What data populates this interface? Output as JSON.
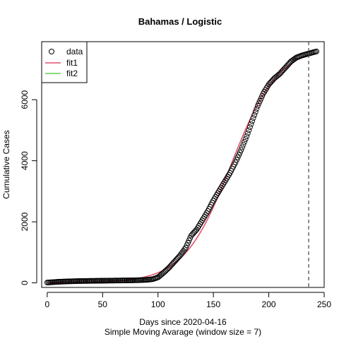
{
  "chart_data": {
    "type": "scatter",
    "title": "Bahamas / Logistic",
    "xlabel": "Days since 2020-04-16",
    "xlabel_sub": "Simple Moving Avarage (window size = 7)",
    "ylabel": "Cumulative Cases",
    "xlim": [
      -5,
      250
    ],
    "ylim": [
      -150,
      7900
    ],
    "x_ticks": [
      0,
      50,
      100,
      150,
      200,
      250
    ],
    "y_ticks": [
      0,
      2000,
      4000,
      6000
    ],
    "x_tick_labels": [
      "0",
      "50",
      "100",
      "150",
      "200",
      "250"
    ],
    "y_tick_labels": [
      "0",
      "2000",
      "4000",
      "6000"
    ],
    "vline_x": 236,
    "legend_position": "top-left",
    "legend": [
      {
        "label": "data",
        "symbol": "open-circle",
        "color": "#000000"
      },
      {
        "label": "fit1",
        "symbol": "line",
        "color": "#DF536B"
      },
      {
        "label": "fit2",
        "symbol": "line",
        "color": "#61D04F"
      }
    ],
    "series": [
      {
        "name": "data",
        "kind": "points",
        "color": "#000000",
        "points": [
          [
            0,
            10
          ],
          [
            10,
            35
          ],
          [
            20,
            50
          ],
          [
            30,
            60
          ],
          [
            40,
            65
          ],
          [
            50,
            70
          ],
          [
            60,
            75
          ],
          [
            70,
            80
          ],
          [
            80,
            85
          ],
          [
            90,
            100
          ],
          [
            95,
            120
          ],
          [
            100,
            180
          ],
          [
            105,
            330
          ],
          [
            110,
            500
          ],
          [
            115,
            700
          ],
          [
            120,
            900
          ],
          [
            125,
            1150
          ],
          [
            130,
            1550
          ],
          [
            135,
            1750
          ],
          [
            140,
            2050
          ],
          [
            145,
            2350
          ],
          [
            150,
            2700
          ],
          [
            155,
            3000
          ],
          [
            160,
            3300
          ],
          [
            165,
            3600
          ],
          [
            170,
            3950
          ],
          [
            175,
            4350
          ],
          [
            180,
            4800
          ],
          [
            185,
            5300
          ],
          [
            190,
            5800
          ],
          [
            195,
            6200
          ],
          [
            200,
            6500
          ],
          [
            205,
            6700
          ],
          [
            210,
            6850
          ],
          [
            215,
            7050
          ],
          [
            220,
            7250
          ],
          [
            225,
            7380
          ],
          [
            230,
            7450
          ],
          [
            235,
            7500
          ],
          [
            240,
            7550
          ],
          [
            243,
            7580
          ]
        ]
      },
      {
        "name": "fit1",
        "kind": "logistic",
        "color": "#DF536B",
        "K": 7750,
        "r": 0.047,
        "x0": 166,
        "x_range": [
          0,
          236
        ]
      }
    ]
  }
}
